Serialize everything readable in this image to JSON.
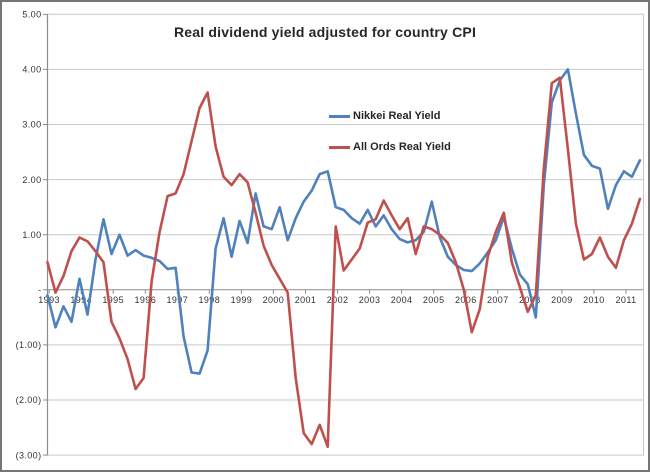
{
  "chart": {
    "title": "Real dividend yield adjusted for country CPI",
    "legend": [
      {
        "label": "Nikkei Real Yield",
        "color": "#4F81BD"
      },
      {
        "label": "All Ords Real Yield",
        "color": "#C0504D"
      }
    ],
    "y_ticks": [
      {
        "label": "5.00",
        "value": 5
      },
      {
        "label": "4.00",
        "value": 4
      },
      {
        "label": "3.00",
        "value": 3
      },
      {
        "label": "2.00",
        "value": 2
      },
      {
        "label": "1.00",
        "value": 1
      },
      {
        "label": "-",
        "value": 0
      },
      {
        "label": "(1.00)",
        "value": -1
      },
      {
        "label": "(2.00)",
        "value": -2
      },
      {
        "label": "(3.00)",
        "value": -3
      }
    ],
    "x_tick_labels": [
      "1993",
      "1994",
      "1995",
      "1996",
      "1997",
      "1998",
      "1999",
      "2000",
      "2001",
      "2002",
      "2003",
      "2004",
      "2005",
      "2006",
      "2007",
      "2008",
      "2009",
      "2010",
      "2011"
    ],
    "colors": {
      "grid": "#c9c9c9",
      "axis": "#8c8c8c",
      "title_text": "#262626",
      "tick_text": "#333333",
      "frame_border": "#757575"
    }
  },
  "chart_data": {
    "type": "line",
    "title": "Real dividend yield adjusted for country CPI",
    "xlabel": "",
    "ylabel": "",
    "grid": true,
    "legend_position": "inside-top-center",
    "ylim": [
      -3,
      5
    ],
    "y_tick_step": 1,
    "x_start": 1993.0,
    "x_step": 0.25,
    "x_end": 2011.5,
    "x_unit": "quarterly observations, labeled yearly 1993-2011",
    "series": [
      {
        "name": "Nikkei Real Yield",
        "color": "#4F81BD",
        "values": [
          -0.1,
          -0.68,
          -0.3,
          -0.58,
          0.2,
          -0.45,
          0.55,
          1.28,
          0.65,
          1.0,
          0.62,
          0.72,
          0.62,
          0.58,
          0.52,
          0.38,
          0.4,
          -0.85,
          -1.5,
          -1.52,
          -1.1,
          0.75,
          1.3,
          0.6,
          1.25,
          0.85,
          1.75,
          1.15,
          1.1,
          1.5,
          0.9,
          1.3,
          1.6,
          1.8,
          2.1,
          2.15,
          1.5,
          1.45,
          1.3,
          1.2,
          1.45,
          1.15,
          1.35,
          1.1,
          0.92,
          0.86,
          0.9,
          1.05,
          1.6,
          0.95,
          0.6,
          0.45,
          0.36,
          0.34,
          0.48,
          0.68,
          0.9,
          1.32,
          0.75,
          0.28,
          0.1,
          -0.5,
          1.9,
          3.4,
          3.8,
          4.0,
          3.2,
          2.45,
          2.25,
          2.2,
          1.47,
          1.9,
          2.15,
          2.05,
          2.35
        ]
      },
      {
        "name": "All Ords Real Yield",
        "color": "#C0504D",
        "values": [
          0.5,
          -0.05,
          0.25,
          0.7,
          0.95,
          0.88,
          0.7,
          0.5,
          -0.58,
          -0.88,
          -1.26,
          -1.8,
          -1.6,
          0.15,
          1.05,
          1.7,
          1.75,
          2.1,
          2.7,
          3.3,
          3.58,
          2.6,
          2.05,
          1.9,
          2.1,
          1.95,
          1.4,
          0.8,
          0.45,
          0.2,
          -0.05,
          -1.6,
          -2.6,
          -2.8,
          -2.45,
          -2.85,
          1.15,
          0.35,
          0.55,
          0.75,
          1.22,
          1.28,
          1.62,
          1.35,
          1.1,
          1.3,
          0.65,
          1.15,
          1.1,
          1.0,
          0.85,
          0.5,
          0.0,
          -0.77,
          -0.35,
          0.6,
          1.05,
          1.4,
          0.5,
          0.05,
          -0.4,
          -0.1,
          2.2,
          3.75,
          3.85,
          2.55,
          1.2,
          0.55,
          0.65,
          0.95,
          0.6,
          0.4,
          0.9,
          1.2,
          1.65
        ]
      }
    ]
  }
}
